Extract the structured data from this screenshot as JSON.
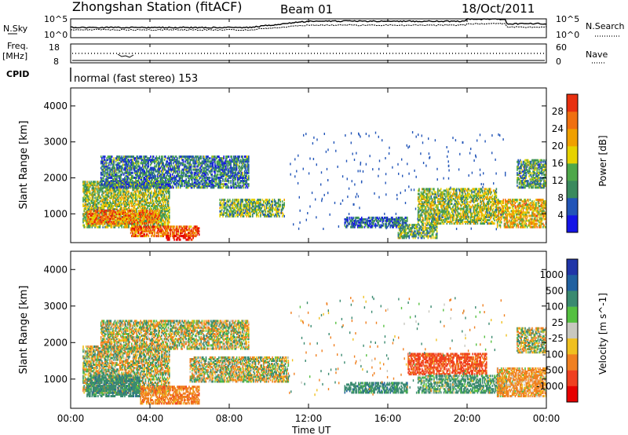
{
  "header": {
    "station": "Zhongshan Station (fitACF)",
    "beam": "Beam 01",
    "date": "18/Oct/2011"
  },
  "top_panel": {
    "left_label": "N.Sky",
    "right_label": "N.Search",
    "y_ticks_left": [
      "10^5",
      "10^0"
    ],
    "y_ticks_right": [
      "10^5",
      "10^0"
    ]
  },
  "freq_panel": {
    "left_label_1": "Freq.",
    "left_label_2": "[MHz]",
    "right_label": "Nave",
    "y_ticks_left": [
      "18",
      "8"
    ],
    "y_ticks_right": [
      "60",
      "0"
    ]
  },
  "cpid": {
    "label": "CPID",
    "text": "normal (fast stereo) 153"
  },
  "x_axis": {
    "label": "Time UT",
    "ticks": [
      "00:00",
      "04:00",
      "08:00",
      "12:00",
      "16:00",
      "20:00",
      "00:00"
    ]
  },
  "colors": {
    "power": [
      "#1414e6",
      "#2255b8",
      "#3a8a5e",
      "#4fa84a",
      "#e6d200",
      "#f0a000",
      "#f07010",
      "#e83010",
      "#e60000"
    ],
    "velocity": [
      "#2035a8",
      "#2060a0",
      "#3a8a70",
      "#55c040",
      "#c8c8c0",
      "#f0c020",
      "#f08020",
      "#f04020",
      "#e60000"
    ]
  },
  "chart_data": [
    {
      "type": "heatmap",
      "title": "Power",
      "ylabel": "Slant Range [km]",
      "xlabel": "",
      "x_range": [
        "00:00",
        "24:00"
      ],
      "ylim": [
        200,
        4500
      ],
      "y_ticks": [
        1000,
        2000,
        3000,
        4000
      ],
      "colorbar": {
        "label": "Power [dB]",
        "ticks": [
          4,
          8,
          12,
          16,
          20,
          24,
          28
        ],
        "range": [
          0,
          32
        ]
      },
      "regions": [
        {
          "t": [
            0.6,
            5.0
          ],
          "r": [
            600,
            1900
          ],
          "value": 14
        },
        {
          "t": [
            0.8,
            4.5
          ],
          "r": [
            700,
            1100
          ],
          "value": 22
        },
        {
          "t": [
            3.0,
            6.5
          ],
          "r": [
            350,
            650
          ],
          "value": 24
        },
        {
          "t": [
            4.8,
            6.2
          ],
          "r": [
            250,
            400
          ],
          "value": 30
        },
        {
          "t": [
            1.5,
            9.0
          ],
          "r": [
            1700,
            2600
          ],
          "value": 8
        },
        {
          "t": [
            7.5,
            10.8
          ],
          "r": [
            900,
            1400
          ],
          "value": 12
        },
        {
          "t": [
            13.8,
            17.0
          ],
          "r": [
            600,
            900
          ],
          "value": 6
        },
        {
          "t": [
            16.5,
            18.5
          ],
          "r": [
            300,
            700
          ],
          "value": 12
        },
        {
          "t": [
            17.5,
            21.5
          ],
          "r": [
            700,
            1700
          ],
          "value": 14
        },
        {
          "t": [
            21.5,
            24.0
          ],
          "r": [
            600,
            1400
          ],
          "value": 18
        },
        {
          "t": [
            22.5,
            24.0
          ],
          "r": [
            1700,
            2500
          ],
          "value": 10
        }
      ]
    },
    {
      "type": "heatmap",
      "title": "Velocity",
      "ylabel": "Slant Range [km]",
      "xlabel": "Time UT",
      "x_range": [
        "00:00",
        "24:00"
      ],
      "ylim": [
        200,
        4500
      ],
      "y_ticks": [
        1000,
        2000,
        3000,
        4000
      ],
      "colorbar": {
        "label": "Velocity [m s^-1]",
        "ticks": [
          1000,
          500,
          100,
          25,
          -25,
          -100,
          -500,
          -1000
        ]
      },
      "regions": [
        {
          "t": [
            0.6,
            5.0
          ],
          "r": [
            600,
            1900
          ],
          "value": 0
        },
        {
          "t": [
            0.8,
            3.5
          ],
          "r": [
            500,
            1100
          ],
          "value": 300
        },
        {
          "t": [
            3.5,
            6.5
          ],
          "r": [
            300,
            800
          ],
          "value": -300
        },
        {
          "t": [
            6.0,
            11.0
          ],
          "r": [
            900,
            1600
          ],
          "value": 0
        },
        {
          "t": [
            1.5,
            9.0
          ],
          "r": [
            1800,
            2600
          ],
          "value": 0
        },
        {
          "t": [
            13.8,
            17.0
          ],
          "r": [
            600,
            900
          ],
          "value": 300
        },
        {
          "t": [
            17.0,
            21.0
          ],
          "r": [
            1100,
            1700
          ],
          "value": -600
        },
        {
          "t": [
            17.5,
            22.0
          ],
          "r": [
            600,
            1100
          ],
          "value": 200
        },
        {
          "t": [
            21.5,
            24.0
          ],
          "r": [
            500,
            1300
          ],
          "value": -200
        },
        {
          "t": [
            22.5,
            24.0
          ],
          "r": [
            1700,
            2400
          ],
          "value": 0
        }
      ]
    }
  ]
}
